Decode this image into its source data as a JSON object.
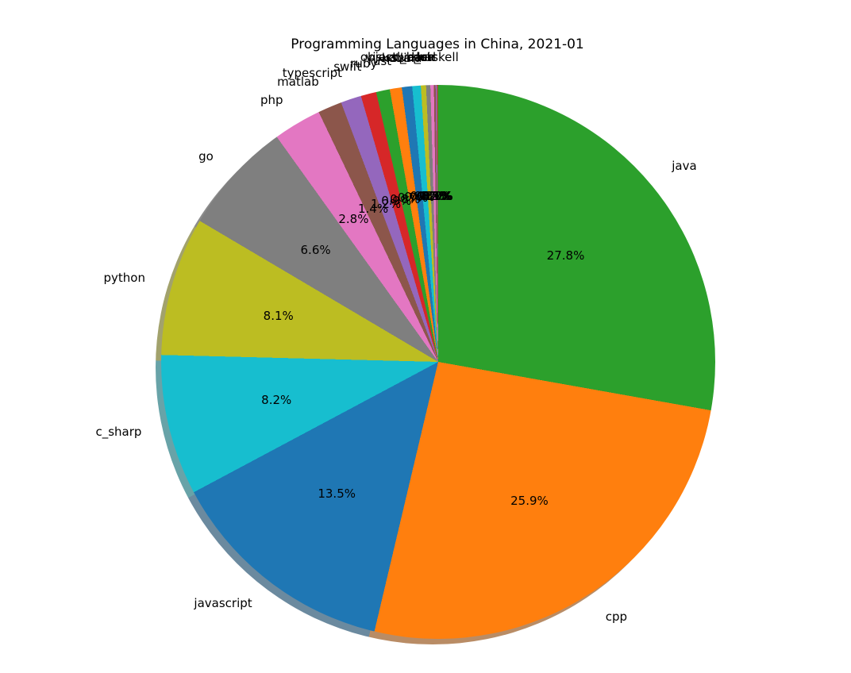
{
  "title": "Programming Languages in China, 2021-01",
  "chart_data": {
    "type": "pie",
    "title": "Programming Languages in China, 2021-01",
    "start_angle": "12-o-clock",
    "direction": "clockwise",
    "label_distance": 1.1,
    "pct_distance": 0.6,
    "shadow": true,
    "legend": "none",
    "slices": [
      {
        "label": "java",
        "value": 27.8,
        "pct_label": "27.8%",
        "color": "#2ca02c"
      },
      {
        "label": "cpp",
        "value": 25.9,
        "pct_label": "25.9%",
        "color": "#ff7f0e"
      },
      {
        "label": "javascript",
        "value": 13.5,
        "pct_label": "13.5%",
        "color": "#1f77b4"
      },
      {
        "label": "c_sharp",
        "value": 8.2,
        "pct_label": "8.2%",
        "color": "#17becf"
      },
      {
        "label": "python",
        "value": 8.1,
        "pct_label": "8.1%",
        "color": "#bcbd22"
      },
      {
        "label": "go",
        "value": 6.6,
        "pct_label": "6.6%",
        "color": "#7f7f7f"
      },
      {
        "label": "php",
        "value": 2.8,
        "pct_label": "2.8%",
        "color": "#e377c2"
      },
      {
        "label": "matlab",
        "value": 1.4,
        "pct_label": "1.4%",
        "color": "#8c564b"
      },
      {
        "label": "typescript",
        "value": 1.2,
        "pct_label": "1.2%",
        "color": "#9467bd"
      },
      {
        "label": "swift",
        "value": 0.9,
        "pct_label": "0.9%",
        "color": "#d62728"
      },
      {
        "label": "ruby",
        "value": 0.8,
        "pct_label": "0.8%",
        "color": "#2ca02c"
      },
      {
        "label": "rust",
        "value": 0.7,
        "pct_label": "0.7%",
        "color": "#ff7f0e"
      },
      {
        "label": "r",
        "value": 0.6,
        "pct_label": "0.6%",
        "color": "#1f77b4"
      },
      {
        "label": "kotlin",
        "value": 0.5,
        "pct_label": "0.5%",
        "color": "#17becf"
      },
      {
        "label": "scala",
        "value": 0.3,
        "pct_label": "0.3%",
        "color": "#bcbd22"
      },
      {
        "label": "objective_c",
        "value": 0.25,
        "pct_label": "0.2%",
        "color": "#7f7f7f"
      },
      {
        "label": "dart",
        "value": 0.2,
        "pct_label": "0.2%",
        "color": "#e377c2"
      },
      {
        "label": "lua",
        "value": 0.1,
        "pct_label": "0.1%",
        "color": "#8c564b"
      },
      {
        "label": "perl",
        "value": 0.07,
        "pct_label": "0.1%",
        "color": "#9467bd"
      },
      {
        "label": "visual_basic",
        "value": 0.05,
        "pct_label": "0.1%",
        "color": "#d62728"
      },
      {
        "label": "haskell",
        "value": 0.03,
        "pct_label": "0.0%",
        "color": "#2ca02c"
      }
    ]
  }
}
